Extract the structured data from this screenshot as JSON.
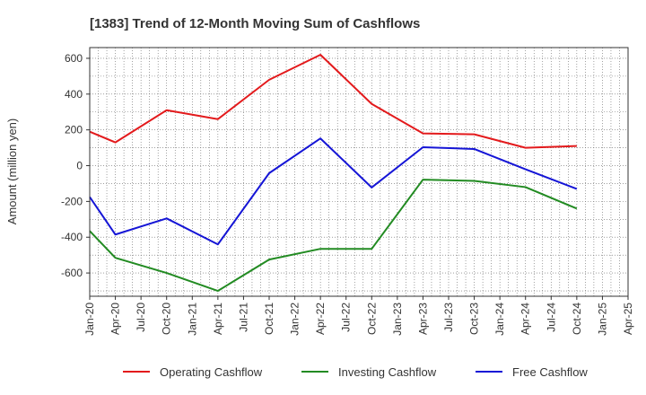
{
  "chart_data": {
    "type": "line",
    "title": "[1383]  Trend of 12-Month Moving Sum of Cashflows",
    "xlabel": "",
    "ylabel": "Amount (million yen)",
    "ylim": [
      -730,
      660
    ],
    "yticks": [
      600,
      400,
      200,
      0,
      -200,
      -400,
      -600
    ],
    "grid": true,
    "legend_position": "bottom",
    "categories": [
      "Jan-20",
      "Apr-20",
      "Jul-20",
      "Oct-20",
      "Jan-21",
      "Apr-21",
      "Jul-21",
      "Oct-21",
      "Jan-22",
      "Apr-22",
      "Jul-22",
      "Oct-22",
      "Jan-23",
      "Apr-23",
      "Jul-23",
      "Oct-23",
      "Jan-24",
      "Apr-24",
      "Jul-24",
      "Oct-24",
      "Jan-25",
      "Apr-25"
    ],
    "series": [
      {
        "name": "Operating Cashflow",
        "color": "#e31a1c",
        "points": [
          {
            "x": "Jan-20",
            "y": 190
          },
          {
            "x": "Apr-20",
            "y": 130
          },
          {
            "x": "Oct-20",
            "y": 310
          },
          {
            "x": "Apr-21",
            "y": 260
          },
          {
            "x": "Oct-21",
            "y": 480
          },
          {
            "x": "Apr-22",
            "y": 620
          },
          {
            "x": "Oct-22",
            "y": 345
          },
          {
            "x": "Apr-23",
            "y": 180
          },
          {
            "x": "Oct-23",
            "y": 175
          },
          {
            "x": "Apr-24",
            "y": 100
          },
          {
            "x": "Oct-24",
            "y": 110
          }
        ]
      },
      {
        "name": "Investing Cashflow",
        "color": "#228b22",
        "points": [
          {
            "x": "Jan-20",
            "y": -365
          },
          {
            "x": "Apr-20",
            "y": -515
          },
          {
            "x": "Oct-20",
            "y": -600
          },
          {
            "x": "Apr-21",
            "y": -700
          },
          {
            "x": "Oct-21",
            "y": -525
          },
          {
            "x": "Apr-22",
            "y": -465
          },
          {
            "x": "Oct-22",
            "y": -465
          },
          {
            "x": "Apr-23",
            "y": -78
          },
          {
            "x": "Oct-23",
            "y": -85
          },
          {
            "x": "Apr-24",
            "y": -120
          },
          {
            "x": "Oct-24",
            "y": -240
          }
        ]
      },
      {
        "name": "Free Cashflow",
        "color": "#1515d6",
        "points": [
          {
            "x": "Jan-20",
            "y": -175
          },
          {
            "x": "Apr-20",
            "y": -385
          },
          {
            "x": "Oct-20",
            "y": -295
          },
          {
            "x": "Apr-21",
            "y": -440
          },
          {
            "x": "Oct-21",
            "y": -42
          },
          {
            "x": "Apr-22",
            "y": 152
          },
          {
            "x": "Oct-22",
            "y": -122
          },
          {
            "x": "Apr-23",
            "y": 103
          },
          {
            "x": "Oct-23",
            "y": 93
          },
          {
            "x": "Apr-24",
            "y": -20
          },
          {
            "x": "Oct-24",
            "y": -130
          }
        ]
      }
    ]
  }
}
